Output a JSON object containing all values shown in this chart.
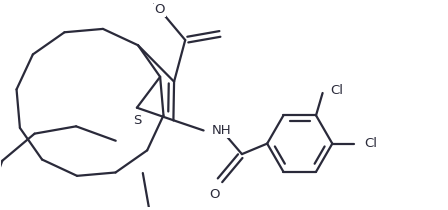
{
  "background_color": "#ffffff",
  "line_color": "#2a2a3a",
  "line_width": 1.6,
  "figsize": [
    4.48,
    2.1
  ],
  "dpi": 100,
  "xlim": [
    0,
    4.48
  ],
  "ylim": [
    0,
    2.1
  ]
}
